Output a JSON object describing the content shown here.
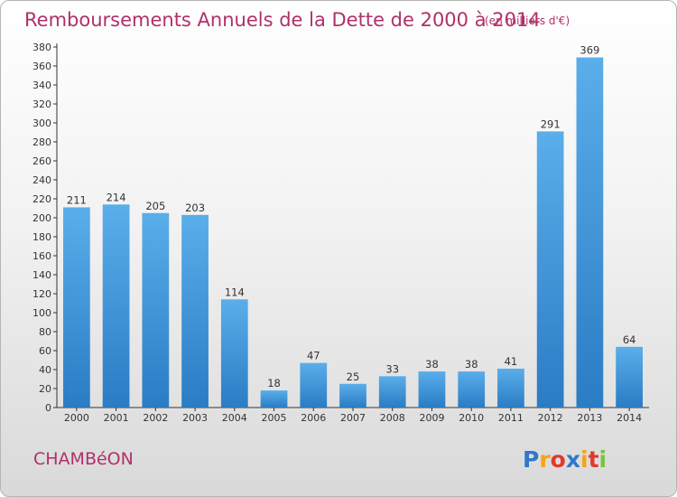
{
  "chart_data": {
    "type": "bar",
    "title": "Remboursements Annuels de la Dette de 2000 à 2014",
    "unit": "(en milliers d'€)",
    "categories": [
      "2000",
      "2001",
      "2002",
      "2003",
      "2004",
      "2005",
      "2006",
      "2007",
      "2008",
      "2009",
      "2010",
      "2011",
      "2012",
      "2013",
      "2014"
    ],
    "values": [
      211,
      214,
      205,
      203,
      114,
      18,
      47,
      25,
      33,
      38,
      38,
      41,
      291,
      369,
      64
    ],
    "ylim": [
      0,
      380
    ],
    "yticks": [
      0,
      20,
      40,
      60,
      80,
      100,
      120,
      140,
      160,
      180,
      200,
      220,
      240,
      260,
      280,
      300,
      320,
      340,
      360,
      380
    ],
    "grid": false,
    "bar_color": "#3b8fd6",
    "xlabel": "",
    "ylabel": ""
  },
  "commune": "CHAMBéON",
  "logo": {
    "letters": [
      "P",
      "r",
      "o",
      "x",
      "i",
      "t",
      "i"
    ],
    "colors": [
      "#2f78c8",
      "#f5a31a",
      "#e2392f",
      "#2f78c8",
      "#f5a31a",
      "#e2392f",
      "#7bc043"
    ]
  },
  "colors": {
    "title": "#b0306a",
    "axis": "#333333"
  }
}
